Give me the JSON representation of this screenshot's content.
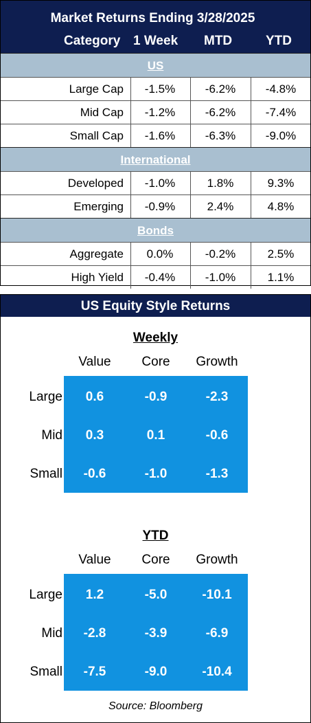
{
  "returns": {
    "title": "Market Returns Ending 3/28/2025",
    "columns": [
      "Category",
      "1 Week",
      "MTD",
      "YTD"
    ],
    "sections": [
      {
        "name": "US",
        "rows": [
          {
            "name": "Large Cap",
            "week": "-1.5%",
            "mtd": "-6.2%",
            "ytd": "-4.8%"
          },
          {
            "name": "Mid Cap",
            "week": "-1.2%",
            "mtd": "-6.2%",
            "ytd": "-7.4%"
          },
          {
            "name": "Small Cap",
            "week": "-1.6%",
            "mtd": "-6.3%",
            "ytd": "-9.0%"
          }
        ]
      },
      {
        "name": "International ",
        "rows": [
          {
            "name": "Developed",
            "week": "-1.0%",
            "mtd": "1.8%",
            "ytd": "9.3%"
          },
          {
            "name": "Emerging",
            "week": "-0.9%",
            "mtd": "2.4%",
            "ytd": "4.8%"
          }
        ]
      },
      {
        "name": "Bonds",
        "rows": [
          {
            "name": "Aggregate",
            "week": "0.0%",
            "mtd": "-0.2%",
            "ytd": "2.5%"
          },
          {
            "name": "High Yield",
            "week": "-0.4%",
            "mtd": "-1.0%",
            "ytd": "1.1%"
          }
        ]
      }
    ]
  },
  "style": {
    "title": "US Equity Style Returns",
    "grids": [
      {
        "title": "Weekly",
        "cols": [
          "Value",
          "Core",
          "Growth"
        ],
        "rows": [
          "Large",
          "Mid",
          "Small"
        ],
        "values": [
          [
            "0.6",
            "-0.9",
            "-2.3"
          ],
          [
            "0.3",
            "0.1",
            "-0.6"
          ],
          [
            "-0.6",
            "-1.0",
            "-1.3"
          ]
        ]
      },
      {
        "title": "YTD",
        "cols": [
          "Value",
          "Core",
          "Growth"
        ],
        "rows": [
          "Large",
          "Mid",
          "Small"
        ],
        "values": [
          [
            "1.2",
            "-5.0",
            "-10.1"
          ],
          [
            "-2.8",
            "-3.9",
            "-6.9"
          ],
          [
            "-7.5",
            "-9.0",
            "-10.4"
          ]
        ]
      }
    ],
    "source": "Source: Bloomberg"
  },
  "colors": {
    "header_navy": "#0e1e50",
    "section_blue": "#a9bfd0",
    "matrix_blue": "#1192e0"
  }
}
